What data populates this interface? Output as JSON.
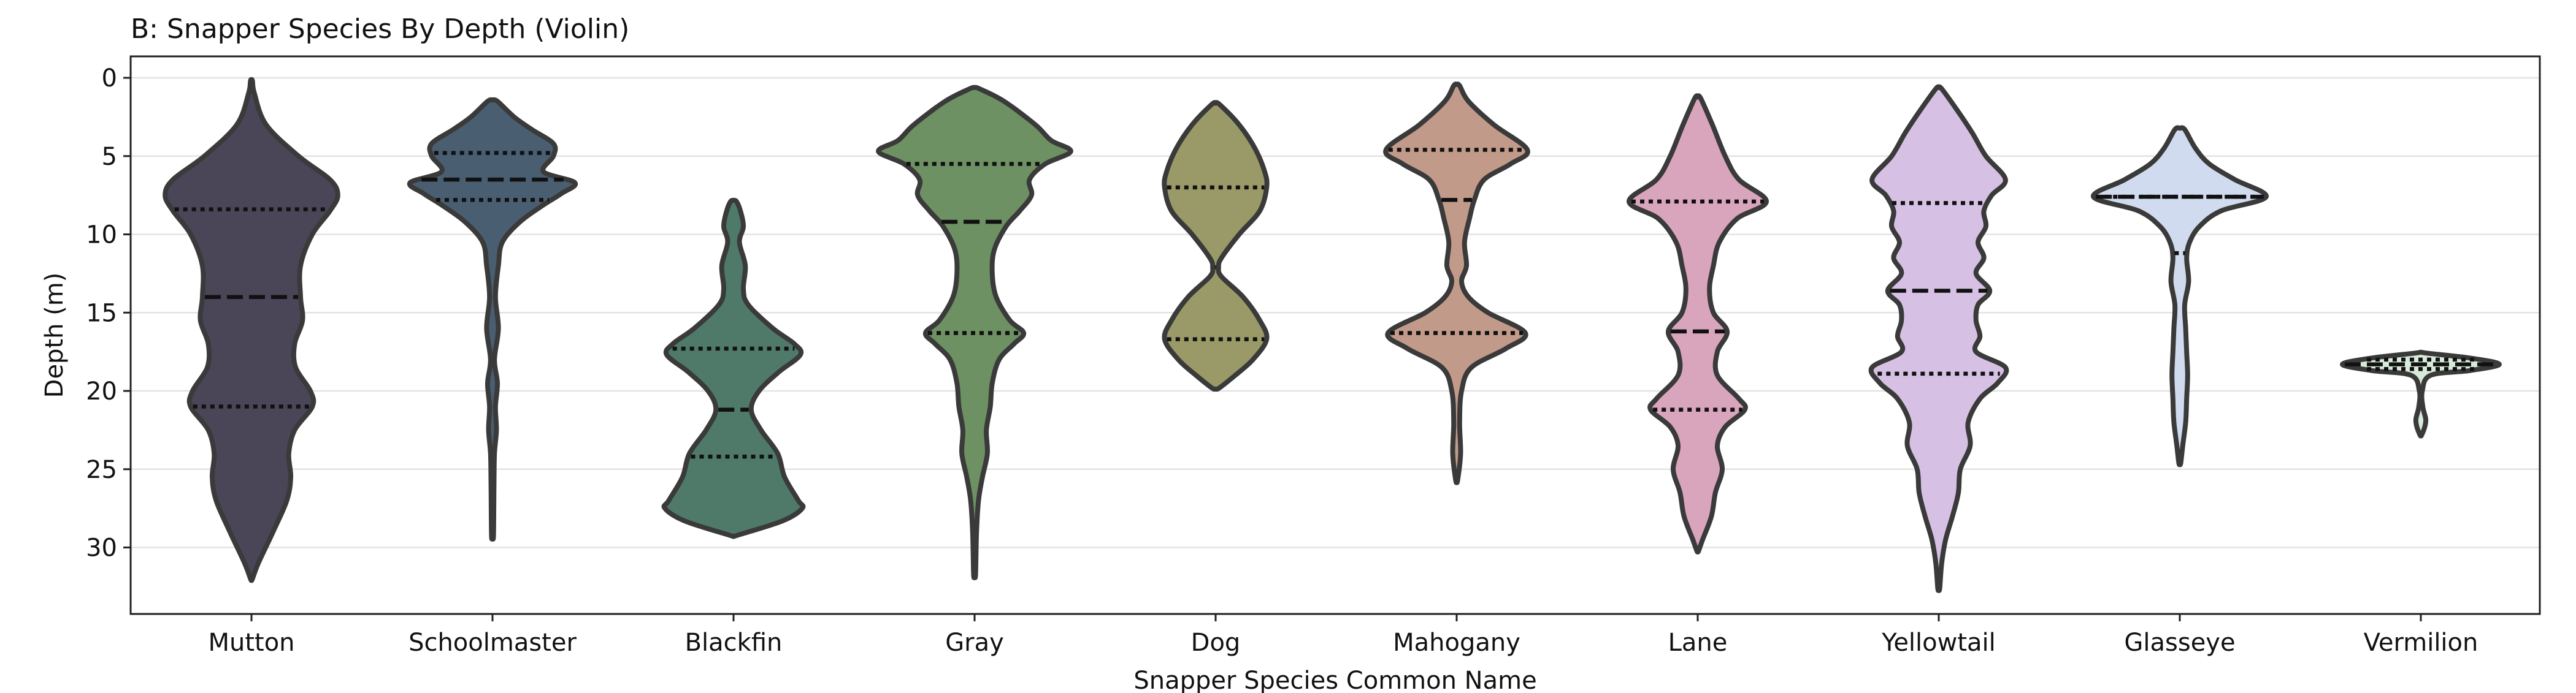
{
  "chart_data": {
    "type": "violin",
    "title": "B: Snapper Species By Depth (Violin)",
    "xlabel": "Snapper Species Common Name",
    "ylabel": "Depth (m)",
    "ylim": [
      0,
      34
    ],
    "y_inverted": true,
    "yticks": [
      0,
      5,
      10,
      15,
      20,
      25,
      30
    ],
    "grid": "horizontal",
    "legend": "none",
    "categories": [
      "Mutton",
      "Schoolmaster",
      "Blackfin",
      "Gray",
      "Dog",
      "Mahogany",
      "Lane",
      "Yellowtail",
      "Glasseye",
      "Vermilion"
    ],
    "violins": [
      {
        "category": "Mutton",
        "color": "#4b4558",
        "min": 0.2,
        "max": 32,
        "q1": 8.4,
        "median": 14,
        "q3": 21,
        "profile": [
          [
            0.2,
            0.01
          ],
          [
            1,
            0.03
          ],
          [
            3,
            0.15
          ],
          [
            5,
            0.48
          ],
          [
            6.5,
            0.8
          ],
          [
            7.5,
            0.88
          ],
          [
            8.5,
            0.8
          ],
          [
            10,
            0.62
          ],
          [
            12,
            0.5
          ],
          [
            14,
            0.5
          ],
          [
            15.5,
            0.52
          ],
          [
            17,
            0.44
          ],
          [
            18.5,
            0.45
          ],
          [
            20,
            0.6
          ],
          [
            21,
            0.62
          ],
          [
            22.5,
            0.44
          ],
          [
            24,
            0.38
          ],
          [
            25.5,
            0.4
          ],
          [
            27,
            0.36
          ],
          [
            29,
            0.22
          ],
          [
            31,
            0.07
          ],
          [
            32,
            0.01
          ]
        ]
      },
      {
        "category": "Schoolmaster",
        "color": "#4a5e72",
        "min": 1.5,
        "max": 29.2,
        "q1": 4.8,
        "median": 6.5,
        "q3": 7.8,
        "profile": [
          [
            1.5,
            0.05
          ],
          [
            2.5,
            0.22
          ],
          [
            3.3,
            0.4
          ],
          [
            4.2,
            0.62
          ],
          [
            5,
            0.62
          ],
          [
            6,
            0.52
          ],
          [
            6.7,
            0.84
          ],
          [
            7.4,
            0.7
          ],
          [
            8.2,
            0.5
          ],
          [
            9.2,
            0.28
          ],
          [
            10.5,
            0.1
          ],
          [
            12,
            0.06
          ],
          [
            14,
            0.03
          ],
          [
            16,
            0.06
          ],
          [
            18,
            0.02
          ],
          [
            19.5,
            0.05
          ],
          [
            21,
            0.03
          ],
          [
            22.5,
            0.04
          ],
          [
            24,
            0.02
          ],
          [
            26,
            0.015
          ],
          [
            29.2,
            0.01
          ]
        ]
      },
      {
        "category": "Blackfin",
        "color": "#4f7a69",
        "min": 7.9,
        "max": 29.2,
        "q1": 17.3,
        "median": 21.2,
        "q3": 24.2,
        "profile": [
          [
            7.9,
            0.03
          ],
          [
            8.5,
            0.07
          ],
          [
            9.5,
            0.1
          ],
          [
            10.5,
            0.06
          ],
          [
            12,
            0.12
          ],
          [
            13.5,
            0.1
          ],
          [
            14.5,
            0.15
          ],
          [
            16,
            0.4
          ],
          [
            17,
            0.62
          ],
          [
            17.7,
            0.68
          ],
          [
            18.8,
            0.46
          ],
          [
            20,
            0.26
          ],
          [
            21.2,
            0.18
          ],
          [
            22.5,
            0.28
          ],
          [
            24,
            0.45
          ],
          [
            25.5,
            0.52
          ],
          [
            27,
            0.66
          ],
          [
            27.5,
            0.7
          ],
          [
            28.3,
            0.5
          ],
          [
            29.2,
            0.05
          ]
        ]
      },
      {
        "category": "Gray",
        "color": "#6d9162",
        "min": 0.7,
        "max": 31.7,
        "q1": 5.5,
        "median": 9.2,
        "q3": 16.3,
        "profile": [
          [
            0.7,
            0.05
          ],
          [
            1.5,
            0.3
          ],
          [
            3,
            0.62
          ],
          [
            4,
            0.78
          ],
          [
            4.7,
            0.98
          ],
          [
            5.5,
            0.72
          ],
          [
            6.5,
            0.56
          ],
          [
            7.5,
            0.58
          ],
          [
            8.5,
            0.46
          ],
          [
            9.5,
            0.32
          ],
          [
            11,
            0.2
          ],
          [
            12.5,
            0.18
          ],
          [
            14,
            0.22
          ],
          [
            15.5,
            0.36
          ],
          [
            16.3,
            0.5
          ],
          [
            17,
            0.4
          ],
          [
            18,
            0.25
          ],
          [
            19.5,
            0.18
          ],
          [
            21,
            0.16
          ],
          [
            22.5,
            0.12
          ],
          [
            24,
            0.13
          ],
          [
            25.5,
            0.08
          ],
          [
            27,
            0.04
          ],
          [
            29,
            0.02
          ],
          [
            31.7,
            0.01
          ]
        ]
      },
      {
        "category": "Dog",
        "color": "#9a9a68",
        "min": 1.7,
        "max": 19.8,
        "q1": 7,
        "median": 12.1,
        "q3": 16.7,
        "profile": [
          [
            1.7,
            0.04
          ],
          [
            3,
            0.24
          ],
          [
            4.5,
            0.4
          ],
          [
            6,
            0.5
          ],
          [
            7,
            0.52
          ],
          [
            8.5,
            0.45
          ],
          [
            10,
            0.24
          ],
          [
            11.5,
            0.06
          ],
          [
            12.1,
            0.03
          ],
          [
            12.7,
            0.06
          ],
          [
            14,
            0.28
          ],
          [
            15.5,
            0.45
          ],
          [
            16.7,
            0.52
          ],
          [
            18,
            0.38
          ],
          [
            19,
            0.2
          ],
          [
            19.8,
            0.04
          ]
        ]
      },
      {
        "category": "Mahogany",
        "color": "#c29a8a",
        "min": 0.5,
        "max": 25.7,
        "q1": 4.6,
        "median": 7.8,
        "q3": 16.3,
        "profile": [
          [
            0.5,
            0.03
          ],
          [
            1.5,
            0.12
          ],
          [
            3,
            0.38
          ],
          [
            4.6,
            0.72
          ],
          [
            5.5,
            0.55
          ],
          [
            6.5,
            0.28
          ],
          [
            7.8,
            0.18
          ],
          [
            9,
            0.13
          ],
          [
            10.5,
            0.08
          ],
          [
            12,
            0.1
          ],
          [
            13,
            0.05
          ],
          [
            14,
            0.12
          ],
          [
            15,
            0.32
          ],
          [
            16.3,
            0.7
          ],
          [
            17.3,
            0.5
          ],
          [
            18.5,
            0.15
          ],
          [
            20,
            0.05
          ],
          [
            22,
            0.03
          ],
          [
            24,
            0.04
          ],
          [
            25.7,
            0.01
          ]
        ]
      },
      {
        "category": "Lane",
        "color": "#d8a5bd",
        "min": 1.3,
        "max": 30.2,
        "q1": 7.9,
        "median": 16.2,
        "q3": 21.2,
        "profile": [
          [
            1.3,
            0.03
          ],
          [
            3,
            0.15
          ],
          [
            5,
            0.28
          ],
          [
            6.5,
            0.42
          ],
          [
            7.9,
            0.7
          ],
          [
            9,
            0.4
          ],
          [
            10.5,
            0.22
          ],
          [
            12,
            0.16
          ],
          [
            13.5,
            0.12
          ],
          [
            15,
            0.16
          ],
          [
            16.2,
            0.3
          ],
          [
            17.5,
            0.2
          ],
          [
            19,
            0.2
          ],
          [
            20.5,
            0.42
          ],
          [
            21.2,
            0.48
          ],
          [
            22.3,
            0.28
          ],
          [
            23.5,
            0.2
          ],
          [
            25,
            0.25
          ],
          [
            26.5,
            0.18
          ],
          [
            28,
            0.14
          ],
          [
            29.5,
            0.05
          ],
          [
            30.2,
            0.01
          ]
        ]
      },
      {
        "category": "Yellowtail",
        "color": "#d6c1e5",
        "min": 0.7,
        "max": 32.6,
        "q1": 8,
        "median": 13.6,
        "q3": 18.9,
        "profile": [
          [
            0.7,
            0.03
          ],
          [
            2,
            0.18
          ],
          [
            3.5,
            0.34
          ],
          [
            5,
            0.48
          ],
          [
            6.5,
            0.68
          ],
          [
            7.5,
            0.54
          ],
          [
            8.5,
            0.46
          ],
          [
            9.5,
            0.48
          ],
          [
            10.5,
            0.4
          ],
          [
            11.5,
            0.46
          ],
          [
            12.5,
            0.38
          ],
          [
            13.6,
            0.52
          ],
          [
            14.5,
            0.4
          ],
          [
            15.5,
            0.38
          ],
          [
            16.5,
            0.42
          ],
          [
            17.5,
            0.38
          ],
          [
            18.5,
            0.68
          ],
          [
            19.5,
            0.6
          ],
          [
            20.5,
            0.42
          ],
          [
            22,
            0.3
          ],
          [
            23.5,
            0.32
          ],
          [
            25,
            0.22
          ],
          [
            26.5,
            0.2
          ],
          [
            28,
            0.14
          ],
          [
            29.5,
            0.07
          ],
          [
            31,
            0.03
          ],
          [
            32.6,
            0.01
          ]
        ]
      },
      {
        "category": "Glasseye",
        "color": "#d1dbef",
        "min": 3.3,
        "max": 24.6,
        "q1": 7.6,
        "median": 7.6,
        "q3": 11.2,
        "profile": [
          [
            3.3,
            0.05
          ],
          [
            4.5,
            0.16
          ],
          [
            5.5,
            0.3
          ],
          [
            6.5,
            0.56
          ],
          [
            7.6,
            0.88
          ],
          [
            8.5,
            0.42
          ],
          [
            9.5,
            0.2
          ],
          [
            10.5,
            0.1
          ],
          [
            11.5,
            0.07
          ],
          [
            13,
            0.09
          ],
          [
            14.5,
            0.05
          ],
          [
            16,
            0.06
          ],
          [
            17.5,
            0.07
          ],
          [
            19,
            0.08
          ],
          [
            20.5,
            0.07
          ],
          [
            22,
            0.06
          ],
          [
            23.5,
            0.03
          ],
          [
            24.6,
            0.01
          ]
        ]
      },
      {
        "category": "Vermilion",
        "color": "#d7ead9",
        "min": 17.6,
        "max": 22.8,
        "q1": 18,
        "median": 18.3,
        "q3": 18.6,
        "profile": [
          [
            17.6,
            0.08
          ],
          [
            17.9,
            0.5
          ],
          [
            18.3,
            0.8
          ],
          [
            18.7,
            0.5
          ],
          [
            19,
            0.1
          ],
          [
            20,
            0.015
          ],
          [
            21,
            0.02
          ],
          [
            21.8,
            0.05
          ],
          [
            22.3,
            0.04
          ],
          [
            22.8,
            0.01
          ]
        ]
      }
    ]
  }
}
